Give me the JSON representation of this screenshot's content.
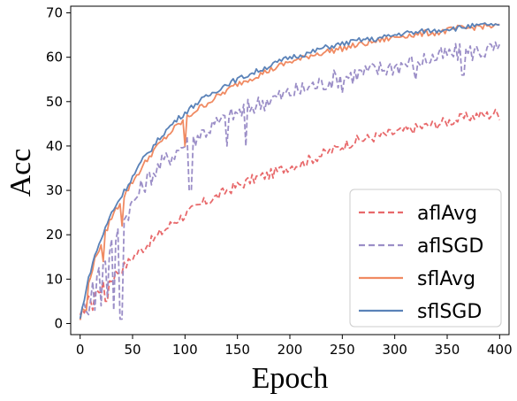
{
  "chart_data": {
    "type": "line",
    "title": "",
    "xlabel": "Epoch",
    "ylabel": "Acc",
    "xlim": [
      -9,
      409
    ],
    "ylim": [
      -2.5,
      71.5
    ],
    "xticks": [
      0,
      50,
      100,
      150,
      200,
      250,
      300,
      350,
      400
    ],
    "yticks": [
      0,
      10,
      20,
      30,
      40,
      50,
      60,
      70
    ],
    "grid": false,
    "legend_position": "lower-right",
    "series": [
      {
        "name": "aflAvg",
        "color": "#e8696b",
        "style": "dashed",
        "x": [
          0,
          5,
          10,
          15,
          20,
          25,
          30,
          35,
          40,
          45,
          50,
          60,
          70,
          80,
          90,
          100,
          110,
          120,
          130,
          140,
          150,
          160,
          170,
          180,
          190,
          200,
          210,
          220,
          230,
          240,
          250,
          260,
          270,
          280,
          290,
          300,
          310,
          320,
          330,
          340,
          350,
          360,
          370,
          380,
          390,
          395,
          400
        ],
        "y": [
          1,
          4,
          6,
          7,
          8,
          9,
          10,
          11.5,
          12.5,
          13.5,
          15,
          17,
          19,
          21,
          23,
          24.5,
          26,
          27.5,
          28.5,
          30,
          31,
          32,
          33,
          33.5,
          34.5,
          35.5,
          36,
          37,
          38,
          39,
          40,
          41,
          41.5,
          42,
          42.5,
          43,
          43.5,
          44,
          44.5,
          45,
          45.5,
          46,
          46.5,
          47,
          47,
          47.5,
          47
        ]
      },
      {
        "name": "aflSGD",
        "color": "#9b8ec7",
        "style": "dashed",
        "x": [
          0,
          5,
          10,
          15,
          20,
          25,
          30,
          35,
          40,
          45,
          50,
          60,
          70,
          80,
          90,
          100,
          110,
          120,
          130,
          140,
          150,
          160,
          170,
          180,
          190,
          200,
          210,
          220,
          230,
          240,
          250,
          260,
          270,
          280,
          290,
          300,
          310,
          320,
          330,
          340,
          350,
          360,
          370,
          380,
          390,
          395,
          400
        ],
        "y": [
          1,
          4,
          7,
          10,
          13,
          16,
          18,
          20,
          22,
          25,
          27,
          31,
          34,
          36.5,
          38.5,
          40.5,
          42,
          43.5,
          45,
          46,
          47.5,
          48.5,
          49.5,
          50.5,
          51,
          52,
          52.5,
          53.5,
          54,
          55,
          55.5,
          56,
          56.5,
          57,
          57.5,
          58,
          58.5,
          59,
          59.5,
          60,
          60.5,
          61,
          61,
          61.5,
          61.5,
          62,
          61
        ]
      },
      {
        "name": "sflAvg",
        "color": "#f08a62",
        "style": "solid",
        "x": [
          0,
          5,
          10,
          15,
          20,
          25,
          30,
          35,
          40,
          45,
          50,
          60,
          70,
          80,
          90,
          100,
          110,
          120,
          130,
          140,
          150,
          160,
          170,
          180,
          190,
          200,
          210,
          220,
          230,
          240,
          250,
          260,
          270,
          280,
          290,
          300,
          310,
          320,
          330,
          340,
          350,
          360,
          370,
          380,
          390,
          395,
          400
        ],
        "y": [
          1,
          6,
          11,
          15,
          18,
          21,
          24,
          26,
          28,
          30,
          32,
          35.5,
          39,
          41.5,
          44,
          46,
          48,
          49.5,
          51,
          52.5,
          54,
          55,
          56,
          57,
          58,
          59,
          59.5,
          60.5,
          61,
          61.5,
          62,
          62.5,
          63,
          63.5,
          64,
          64.5,
          65,
          65,
          65.5,
          65.5,
          66,
          66.5,
          66.5,
          67,
          67,
          67,
          67
        ]
      },
      {
        "name": "sflSGD",
        "color": "#5a82b8",
        "style": "solid",
        "x": [
          0,
          5,
          10,
          15,
          20,
          25,
          30,
          35,
          40,
          45,
          50,
          60,
          70,
          80,
          90,
          100,
          110,
          120,
          130,
          140,
          150,
          160,
          170,
          180,
          190,
          200,
          210,
          220,
          230,
          240,
          250,
          260,
          270,
          280,
          290,
          300,
          310,
          320,
          330,
          340,
          350,
          360,
          370,
          380,
          390,
          395,
          400
        ],
        "y": [
          1,
          7,
          12,
          16,
          19,
          22,
          25,
          27,
          29,
          31,
          33,
          37,
          40,
          43,
          45.5,
          47.5,
          49.5,
          51,
          52.5,
          54,
          55,
          56,
          57,
          58,
          59,
          60,
          60.5,
          61,
          62,
          62.5,
          63,
          63.5,
          64,
          64,
          64.5,
          65,
          65.5,
          65.5,
          66,
          66,
          66.5,
          66.5,
          67,
          67,
          67.5,
          67,
          67
        ]
      }
    ]
  }
}
